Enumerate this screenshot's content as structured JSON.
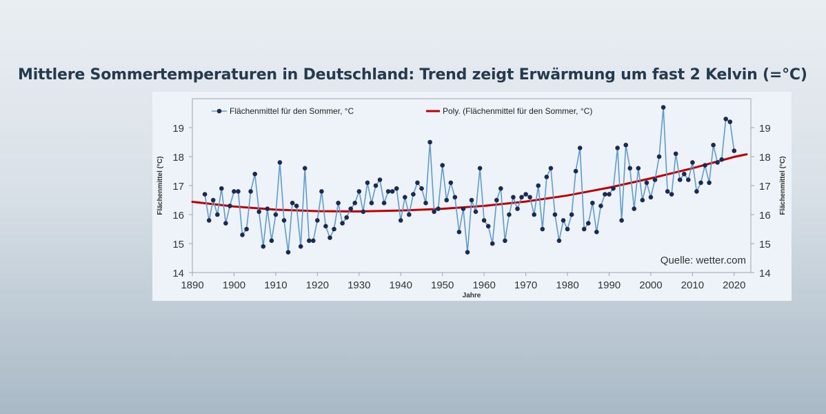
{
  "headline": "Mittlere Sommertemperaturen in Deutschland: Trend zeigt Erwärmung um fast 2 Kelvin (=°C)",
  "source_label": "Quelle: wetter.com",
  "colors": {
    "series": "#5b9bd5",
    "markers": "#1b2a52",
    "trend": "#c00000",
    "axis_text": "#333333",
    "title": "#233a4f"
  },
  "chart_data": {
    "type": "line",
    "title": "",
    "xlabel": "Jahre",
    "ylabel": "Flächenmittel (°C)",
    "ylabel_right": "Flächenmittel (°C)",
    "xlim": [
      1890,
      2024
    ],
    "ylim": [
      14,
      20
    ],
    "x_ticks": [
      1890,
      1900,
      1910,
      1920,
      1930,
      1940,
      1950,
      1960,
      1970,
      1980,
      1990,
      2000,
      2010,
      2020
    ],
    "y_ticks": [
      14,
      15,
      16,
      17,
      18,
      19
    ],
    "grid": false,
    "legend_position": "top",
    "series": [
      {
        "name": "Flächenmittel für den Sommer, °C",
        "style": "line-with-markers",
        "x": [
          1893,
          1894,
          1895,
          1896,
          1897,
          1898,
          1899,
          1900,
          1901,
          1902,
          1903,
          1904,
          1905,
          1906,
          1907,
          1908,
          1909,
          1910,
          1911,
          1912,
          1913,
          1914,
          1915,
          1916,
          1917,
          1918,
          1919,
          1920,
          1921,
          1922,
          1923,
          1924,
          1925,
          1926,
          1927,
          1928,
          1929,
          1930,
          1931,
          1932,
          1933,
          1934,
          1935,
          1936,
          1937,
          1938,
          1939,
          1940,
          1941,
          1942,
          1943,
          1944,
          1945,
          1946,
          1947,
          1948,
          1949,
          1950,
          1951,
          1952,
          1953,
          1954,
          1955,
          1956,
          1957,
          1958,
          1959,
          1960,
          1961,
          1962,
          1963,
          1964,
          1965,
          1966,
          1967,
          1968,
          1969,
          1970,
          1971,
          1972,
          1973,
          1974,
          1975,
          1976,
          1977,
          1978,
          1979,
          1980,
          1981,
          1982,
          1983,
          1984,
          1985,
          1986,
          1987,
          1988,
          1989,
          1990,
          1991,
          1992,
          1993,
          1994,
          1995,
          1996,
          1997,
          1998,
          1999,
          2000,
          2001,
          2002,
          2003,
          2004,
          2005,
          2006,
          2007,
          2008,
          2009,
          2010,
          2011,
          2012,
          2013,
          2014,
          2015,
          2016,
          2017,
          2018,
          2019,
          2020
        ],
        "values": [
          16.7,
          15.8,
          16.5,
          16.0,
          16.9,
          15.7,
          16.3,
          16.8,
          16.8,
          15.3,
          15.5,
          16.8,
          17.4,
          16.1,
          14.9,
          16.2,
          15.1,
          16.0,
          17.8,
          15.8,
          14.7,
          16.4,
          16.3,
          14.9,
          17.6,
          15.1,
          15.1,
          15.8,
          16.8,
          15.6,
          15.2,
          15.5,
          16.4,
          15.7,
          15.9,
          16.2,
          16.4,
          16.8,
          16.1,
          17.1,
          16.4,
          17.0,
          17.2,
          16.4,
          16.8,
          16.8,
          16.9,
          15.8,
          16.6,
          16.0,
          16.7,
          17.1,
          16.9,
          16.4,
          18.5,
          16.1,
          16.2,
          17.7,
          16.5,
          17.1,
          16.6,
          15.4,
          16.2,
          14.7,
          16.5,
          16.1,
          17.6,
          15.8,
          15.6,
          15.0,
          16.5,
          16.9,
          15.1,
          16.0,
          16.6,
          16.2,
          16.6,
          16.7,
          16.6,
          16.0,
          17.0,
          15.5,
          17.3,
          17.6,
          16.0,
          15.1,
          15.8,
          15.5,
          16.0,
          17.5,
          18.3,
          15.5,
          15.7,
          16.4,
          15.4,
          16.3,
          16.7,
          16.7,
          16.9,
          18.3,
          15.8,
          18.4,
          17.6,
          16.2,
          17.6,
          16.5,
          17.1,
          16.6,
          17.2,
          18.0,
          19.7,
          16.8,
          16.7,
          18.1,
          17.2,
          17.4,
          17.2,
          17.8,
          16.8,
          17.1,
          17.7,
          17.1,
          18.4,
          17.8,
          17.9,
          19.3,
          19.2,
          18.2
        ]
      },
      {
        "name": "Poly. (Flächenmittel für den Sommer, °C)",
        "style": "trendline",
        "x": [
          1890,
          1900,
          1910,
          1920,
          1930,
          1940,
          1950,
          1960,
          1970,
          1980,
          1990,
          2000,
          2010,
          2020,
          2023
        ],
        "values": [
          16.44,
          16.28,
          16.17,
          16.12,
          16.11,
          16.14,
          16.2,
          16.3,
          16.45,
          16.66,
          16.93,
          17.25,
          17.6,
          17.99,
          18.08
        ]
      }
    ]
  }
}
